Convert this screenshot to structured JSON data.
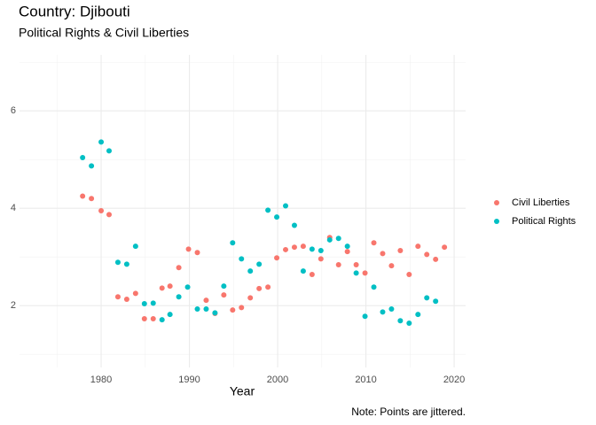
{
  "chart_data": {
    "type": "scatter",
    "title": "Country: Djibouti",
    "subtitle": "Political Rights & Civil Liberties",
    "x_label": "Year",
    "caption": "Note: Points are jittered.",
    "xlim": [
      1970.75,
      2021.3
    ],
    "ylim": [
      0.73,
      7.15
    ],
    "xticks": [
      1980,
      1990,
      2000,
      2010,
      2020
    ],
    "yticks": [
      2,
      4,
      6
    ],
    "x_minor_grid": [
      1975,
      1985,
      1995,
      2005,
      2015
    ],
    "y_minor_grid": [
      1,
      3,
      5,
      7
    ],
    "grid": true,
    "legend": "right",
    "series": [
      {
        "name": "Civil Liberties",
        "color": "#F8766D",
        "x": [
          1977.9,
          1978.9,
          1980,
          1980.9,
          1981.9,
          1982.9,
          1983.9,
          1984.9,
          1985.9,
          1986.9,
          1987.8,
          1988.8,
          1989.9,
          1990.9,
          1991.9,
          1992.9,
          1993.9,
          1994.9,
          1995.9,
          1996.9,
          1997.9,
          1998.9,
          1999.9,
          2000.9,
          2001.9,
          2002.9,
          2003.9,
          2004.9,
          2005.9,
          2006.9,
          2007.9,
          2008.9,
          2009.9,
          2010.9,
          2011.9,
          2012.9,
          2013.9,
          2014.9,
          2015.9,
          2016.9,
          2017.9,
          2018.9
        ],
        "values": [
          4.25,
          4.2,
          3.95,
          3.87,
          2.18,
          2.13,
          2.25,
          1.73,
          1.73,
          2.36,
          2.4,
          2.78,
          3.16,
          3.09,
          2.11,
          1.84,
          2.22,
          1.91,
          1.96,
          2.16,
          2.35,
          2.38,
          2.98,
          3.15,
          3.2,
          3.22,
          2.64,
          2.96,
          3.4,
          2.84,
          3.11,
          2.84,
          2.67,
          3.29,
          3.07,
          2.82,
          3.13,
          2.64,
          3.22,
          3.05,
          2.95,
          3.2
        ]
      },
      {
        "name": "Political Rights",
        "color": "#00BFC4",
        "x": [
          1977.9,
          1978.9,
          1980,
          1980.9,
          1981.9,
          1982.9,
          1983.9,
          1984.9,
          1985.9,
          1986.9,
          1987.8,
          1988.8,
          1989.8,
          1990.9,
          1991.9,
          1992.9,
          1993.9,
          1994.9,
          1995.9,
          1996.9,
          1997.9,
          1998.9,
          1999.9,
          2000.9,
          2001.9,
          2002.9,
          2003.9,
          2004.9,
          2005.9,
          2006.9,
          2007.9,
          2008.9,
          2009.9,
          2010.9,
          2011.9,
          2012.9,
          2013.9,
          2014.9,
          2015.9,
          2016.9,
          2017.9
        ],
        "values": [
          5.04,
          4.87,
          5.36,
          5.18,
          2.89,
          2.85,
          3.22,
          2.04,
          2.05,
          1.71,
          1.82,
          2.18,
          2.38,
          1.93,
          1.93,
          1.85,
          2.4,
          3.29,
          2.96,
          2.71,
          2.85,
          3.96,
          3.82,
          4.05,
          3.65,
          2.71,
          3.16,
          3.13,
          3.35,
          3.38,
          3.22,
          2.67,
          1.78,
          2.38,
          1.87,
          1.93,
          1.69,
          1.64,
          1.82,
          2.16,
          2.09
        ]
      }
    ]
  }
}
